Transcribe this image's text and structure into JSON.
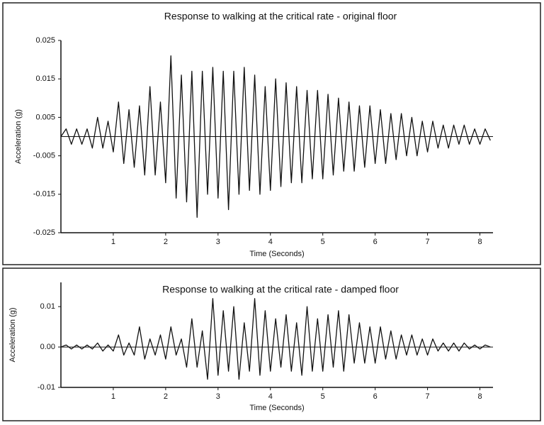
{
  "chart_data": [
    {
      "type": "line",
      "title": "Response to walking at the critical rate - original floor",
      "x_label": "Time (Seconds)",
      "y_label": "Acceleration (g)",
      "color": "#111111",
      "xlim": [
        0,
        8.25
      ],
      "ylim": [
        -0.025,
        0.025
      ],
      "xticks": [
        1,
        2,
        3,
        4,
        5,
        6,
        7,
        8
      ],
      "yticks": [
        -0.025,
        -0.015,
        -0.005,
        0.005,
        0.015,
        0.025
      ],
      "x": [
        0,
        0.1,
        0.2,
        0.3,
        0.4,
        0.5,
        0.6,
        0.7,
        0.8,
        0.9,
        1,
        1.1,
        1.2,
        1.3,
        1.4,
        1.5,
        1.6,
        1.7,
        1.8,
        1.9,
        2,
        2.1,
        2.2,
        2.3,
        2.4,
        2.5,
        2.6,
        2.7,
        2.8,
        2.9,
        3,
        3.1,
        3.2,
        3.3,
        3.4,
        3.5,
        3.6,
        3.7,
        3.8,
        3.9,
        4,
        4.1,
        4.2,
        4.3,
        4.4,
        4.5,
        4.6,
        4.7,
        4.8,
        4.9,
        5,
        5.1,
        5.2,
        5.3,
        5.4,
        5.5,
        5.6,
        5.7,
        5.8,
        5.9,
        6,
        6.1,
        6.2,
        6.3,
        6.4,
        6.5,
        6.6,
        6.7,
        6.8,
        6.9,
        7,
        7.1,
        7.2,
        7.3,
        7.4,
        7.5,
        7.6,
        7.7,
        7.8,
        7.9,
        8,
        8.1,
        8.2
      ],
      "values": [
        0,
        0.002,
        -0.002,
        0.002,
        -0.002,
        0.002,
        -0.003,
        0.005,
        -0.003,
        0.004,
        -0.004,
        0.009,
        -0.007,
        0.007,
        -0.008,
        0.008,
        -0.01,
        0.013,
        -0.01,
        0.009,
        -0.012,
        0.021,
        -0.016,
        0.016,
        -0.017,
        0.017,
        -0.021,
        0.017,
        -0.015,
        0.018,
        -0.016,
        0.017,
        -0.019,
        0.017,
        -0.015,
        0.018,
        -0.014,
        0.016,
        -0.015,
        0.013,
        -0.014,
        0.015,
        -0.013,
        0.014,
        -0.012,
        0.013,
        -0.012,
        0.012,
        -0.011,
        0.012,
        -0.011,
        0.011,
        -0.01,
        0.01,
        -0.009,
        0.009,
        -0.009,
        0.008,
        -0.008,
        0.008,
        -0.007,
        0.007,
        -0.007,
        0.006,
        -0.006,
        0.006,
        -0.005,
        0.005,
        -0.005,
        0.004,
        -0.004,
        0.004,
        -0.003,
        0.003,
        -0.003,
        0.003,
        -0.002,
        0.003,
        -0.002,
        0.002,
        -0.002,
        0.002,
        -0.001
      ]
    },
    {
      "type": "line",
      "title": "Response to walking at the critical rate - damped floor",
      "x_label": "Time (Seconds)",
      "y_label": "Acceleration (g)",
      "color": "#111111",
      "xlim": [
        0,
        8.25
      ],
      "ylim": [
        -0.01,
        0.016
      ],
      "xticks": [
        1,
        2,
        3,
        4,
        5,
        6,
        7,
        8
      ],
      "yticks": [
        {
          "value": -0.01,
          "label": "-0.01"
        },
        {
          "value": 0,
          "label": "0.00"
        },
        {
          "value": 0.01,
          "label": "0.01"
        }
      ],
      "x": [
        0,
        0.1,
        0.2,
        0.3,
        0.4,
        0.5,
        0.6,
        0.7,
        0.8,
        0.9,
        1,
        1.1,
        1.2,
        1.3,
        1.4,
        1.5,
        1.6,
        1.7,
        1.8,
        1.9,
        2,
        2.1,
        2.2,
        2.3,
        2.4,
        2.5,
        2.6,
        2.7,
        2.8,
        2.9,
        3,
        3.1,
        3.2,
        3.3,
        3.4,
        3.5,
        3.6,
        3.7,
        3.8,
        3.9,
        4,
        4.1,
        4.2,
        4.3,
        4.4,
        4.5,
        4.6,
        4.7,
        4.8,
        4.9,
        5,
        5.1,
        5.2,
        5.3,
        5.4,
        5.5,
        5.6,
        5.7,
        5.8,
        5.9,
        6,
        6.1,
        6.2,
        6.3,
        6.4,
        6.5,
        6.6,
        6.7,
        6.8,
        6.9,
        7,
        7.1,
        7.2,
        7.3,
        7.4,
        7.5,
        7.6,
        7.7,
        7.8,
        7.9,
        8,
        8.1,
        8.2
      ],
      "values": [
        0,
        0.0005,
        -0.0005,
        0.0005,
        -0.0005,
        0.0005,
        -0.0005,
        0.001,
        -0.001,
        0.0005,
        -0.001,
        0.003,
        -0.002,
        0.001,
        -0.002,
        0.005,
        -0.003,
        0.002,
        -0.002,
        0.003,
        -0.003,
        0.005,
        -0.002,
        0.002,
        -0.005,
        0.007,
        -0.005,
        0.004,
        -0.008,
        0.012,
        -0.007,
        0.009,
        -0.006,
        0.01,
        -0.008,
        0.006,
        -0.006,
        0.012,
        -0.007,
        0.009,
        -0.006,
        0.007,
        -0.005,
        0.008,
        -0.006,
        0.006,
        -0.007,
        0.01,
        -0.006,
        0.007,
        -0.006,
        0.008,
        -0.005,
        0.009,
        -0.006,
        0.008,
        -0.004,
        0.006,
        -0.004,
        0.005,
        -0.004,
        0.005,
        -0.003,
        0.004,
        -0.003,
        0.003,
        -0.002,
        0.003,
        -0.002,
        0.002,
        -0.002,
        0.002,
        -0.001,
        0.001,
        -0.001,
        0.001,
        -0.001,
        0.001,
        -0.0005,
        0.0005,
        -0.0005,
        0.0005,
        0
      ]
    }
  ]
}
